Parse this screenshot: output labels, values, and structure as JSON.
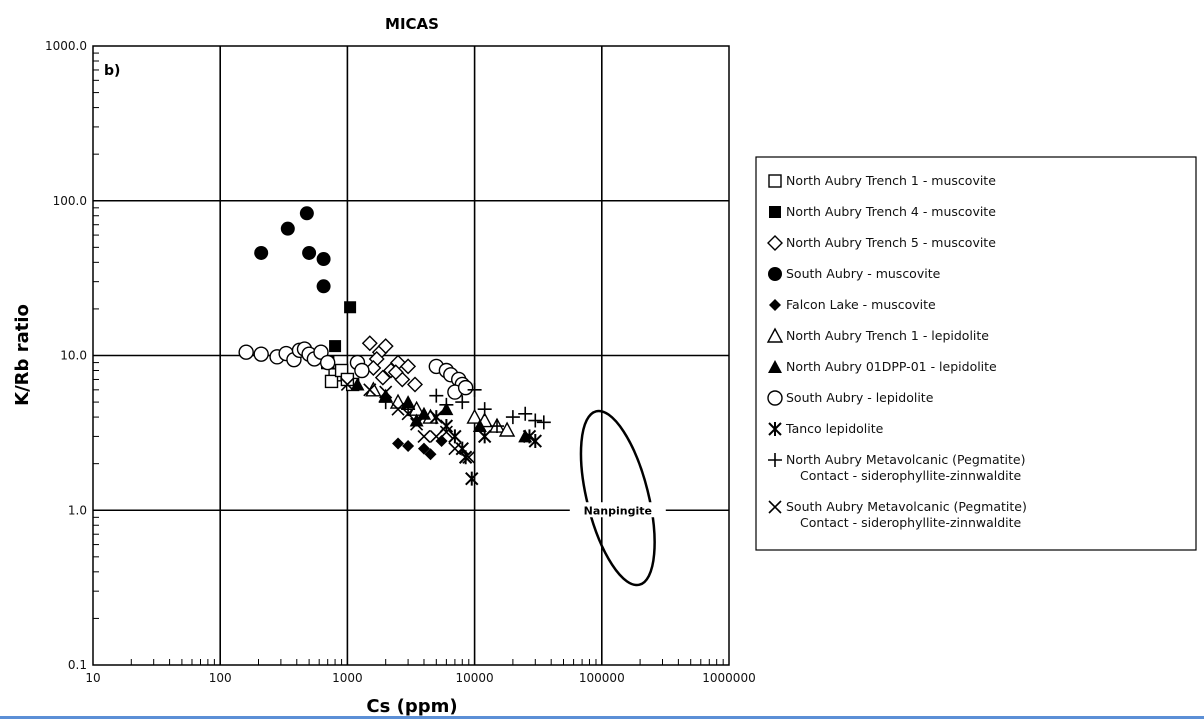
{
  "chart_data": {
    "type": "scatter",
    "title": "MICAS",
    "panel_label": "b)",
    "xlabel": "Cs (ppm)",
    "ylabel": "K/Rb ratio",
    "xscale": "log",
    "yscale": "log",
    "xlim": [
      10,
      1000000
    ],
    "ylim": [
      0.1,
      1000
    ],
    "x_ticks": [
      "10",
      "100",
      "1000",
      "10000",
      "100000",
      "1000000"
    ],
    "y_ticks": [
      "0.1",
      "1.0",
      "10.0",
      "100.0",
      "1000.0"
    ],
    "grid": true,
    "legend_position": "right",
    "region": {
      "label": "Nanpingite",
      "center": [
        100000,
        1.2
      ],
      "x_range": [
        50000,
        300000
      ],
      "y_range": [
        0.28,
        4.0
      ]
    },
    "series": [
      {
        "name": "North Aubry Trench 1 - muscovite",
        "marker": "open-square",
        "points": [
          [
            700,
            9.0
          ],
          [
            800,
            7.5
          ],
          [
            750,
            6.8
          ],
          [
            900,
            8.0
          ],
          [
            1100,
            6.5
          ],
          [
            1000,
            7.0
          ]
        ]
      },
      {
        "name": "North Aubry Trench 4 - muscovite",
        "marker": "filled-square",
        "points": [
          [
            1050,
            20.5
          ],
          [
            800,
            11.5
          ]
        ]
      },
      {
        "name": "North Aubry Trench 5 - muscovite",
        "marker": "open-diamond",
        "points": [
          [
            1500,
            12.0
          ],
          [
            1800,
            10.5
          ],
          [
            2000,
            11.5
          ],
          [
            1700,
            9.5
          ],
          [
            2500,
            9.0
          ],
          [
            3000,
            8.5
          ],
          [
            2200,
            8.0
          ],
          [
            1900,
            7.2
          ],
          [
            2700,
            7.0
          ],
          [
            3400,
            6.5
          ],
          [
            1600,
            8.3
          ],
          [
            2400,
            7.8
          ]
        ]
      },
      {
        "name": "South Aubry - muscovite",
        "marker": "filled-circle",
        "points": [
          [
            210,
            46
          ],
          [
            340,
            66
          ],
          [
            480,
            83
          ],
          [
            500,
            46
          ],
          [
            650,
            42
          ],
          [
            650,
            28
          ]
        ]
      },
      {
        "name": "Falcon Lake - muscovite",
        "marker": "filled-diamond",
        "points": [
          [
            2500,
            2.7
          ],
          [
            3000,
            2.6
          ],
          [
            4000,
            2.5
          ],
          [
            4500,
            2.3
          ],
          [
            5500,
            2.8
          ]
        ]
      },
      {
        "name": "North Aubry Trench 1 - lepidolite",
        "marker": "open-triangle",
        "points": [
          [
            1600,
            6.0
          ],
          [
            2500,
            5.0
          ],
          [
            3500,
            4.5
          ],
          [
            4500,
            4.0
          ],
          [
            10000,
            4.0
          ],
          [
            15000,
            3.5
          ],
          [
            18000,
            3.3
          ],
          [
            12000,
            3.8
          ]
        ]
      },
      {
        "name": "North Aubry 01DPP-01 - lepidolite",
        "marker": "filled-triangle",
        "points": [
          [
            1200,
            6.5
          ],
          [
            2000,
            5.5
          ],
          [
            3000,
            5.0
          ],
          [
            4000,
            4.2
          ],
          [
            3500,
            3.8
          ],
          [
            6000,
            4.5
          ],
          [
            11000,
            3.5
          ],
          [
            25000,
            3.0
          ]
        ]
      },
      {
        "name": "South Aubry - lepidolite",
        "marker": "open-circle",
        "points": [
          [
            160,
            10.5
          ],
          [
            210,
            10.2
          ],
          [
            280,
            9.8
          ],
          [
            330,
            10.3
          ],
          [
            380,
            9.4
          ],
          [
            420,
            10.8
          ],
          [
            460,
            11.0
          ],
          [
            500,
            10.2
          ],
          [
            550,
            9.5
          ],
          [
            620,
            10.5
          ],
          [
            700,
            9.0
          ],
          [
            1200,
            9.0
          ],
          [
            1300,
            8.0
          ],
          [
            5000,
            8.5
          ],
          [
            6000,
            8.0
          ],
          [
            6500,
            7.5
          ],
          [
            7500,
            7.0
          ],
          [
            8000,
            6.5
          ],
          [
            7000,
            5.8
          ],
          [
            8500,
            6.2
          ]
        ]
      },
      {
        "name": "Tanco lepidolite",
        "marker": "asterisk",
        "points": [
          [
            5000,
            4.0
          ],
          [
            6000,
            3.5
          ],
          [
            7000,
            3.0
          ],
          [
            8000,
            2.5
          ],
          [
            8500,
            2.2
          ],
          [
            9500,
            1.6
          ],
          [
            12000,
            3.0
          ],
          [
            30000,
            2.8
          ],
          [
            27000,
            3.0
          ]
        ]
      },
      {
        "name": "North Aubry Metavolcanic (Pegmatite) Contact - siderophyllite-zinnwaldite",
        "marker": "plus",
        "points": [
          [
            2000,
            5.0
          ],
          [
            3000,
            4.5
          ],
          [
            5000,
            5.5
          ],
          [
            8000,
            5.0
          ],
          [
            10000,
            6.0
          ],
          [
            12000,
            4.5
          ],
          [
            15000,
            3.5
          ],
          [
            20000,
            4.0
          ],
          [
            25000,
            4.2
          ],
          [
            30000,
            3.8
          ],
          [
            35000,
            3.7
          ],
          [
            6000,
            4.8
          ]
        ]
      },
      {
        "name": "South Aubry Metavolcanic (Pegmatite) Contact - siderophyllite-zinnwaldite",
        "marker": "cross",
        "points": [
          [
            1000,
            6.5
          ],
          [
            1500,
            6.0
          ],
          [
            2000,
            5.8
          ],
          [
            2500,
            4.5
          ],
          [
            3000,
            4.2
          ],
          [
            3500,
            3.6
          ],
          [
            5000,
            3.0
          ],
          [
            6000,
            3.2
          ],
          [
            7000,
            2.5
          ],
          [
            9000,
            2.2
          ],
          [
            4000,
            3.0
          ]
        ]
      }
    ],
    "legend": [
      [
        "North Aubry Trench 1 - muscovite"
      ],
      [
        "North Aubry Trench 4 - muscovite"
      ],
      [
        "North Aubry Trench 5 - muscovite"
      ],
      [
        "South Aubry - muscovite"
      ],
      [
        "Falcon Lake - muscovite"
      ],
      [
        "North Aubry Trench 1 - lepidolite"
      ],
      [
        "North Aubry 01DPP-01 - lepidolite"
      ],
      [
        "South Aubry - lepidolite"
      ],
      [
        "Tanco lepidolite"
      ],
      [
        "North Aubry Metavolcanic (Pegmatite)",
        "Contact - siderophyllite-zinnwaldite"
      ],
      [
        "South Aubry Metavolcanic (Pegmatite)",
        "Contact - siderophyllite-zinnwaldite"
      ]
    ]
  }
}
